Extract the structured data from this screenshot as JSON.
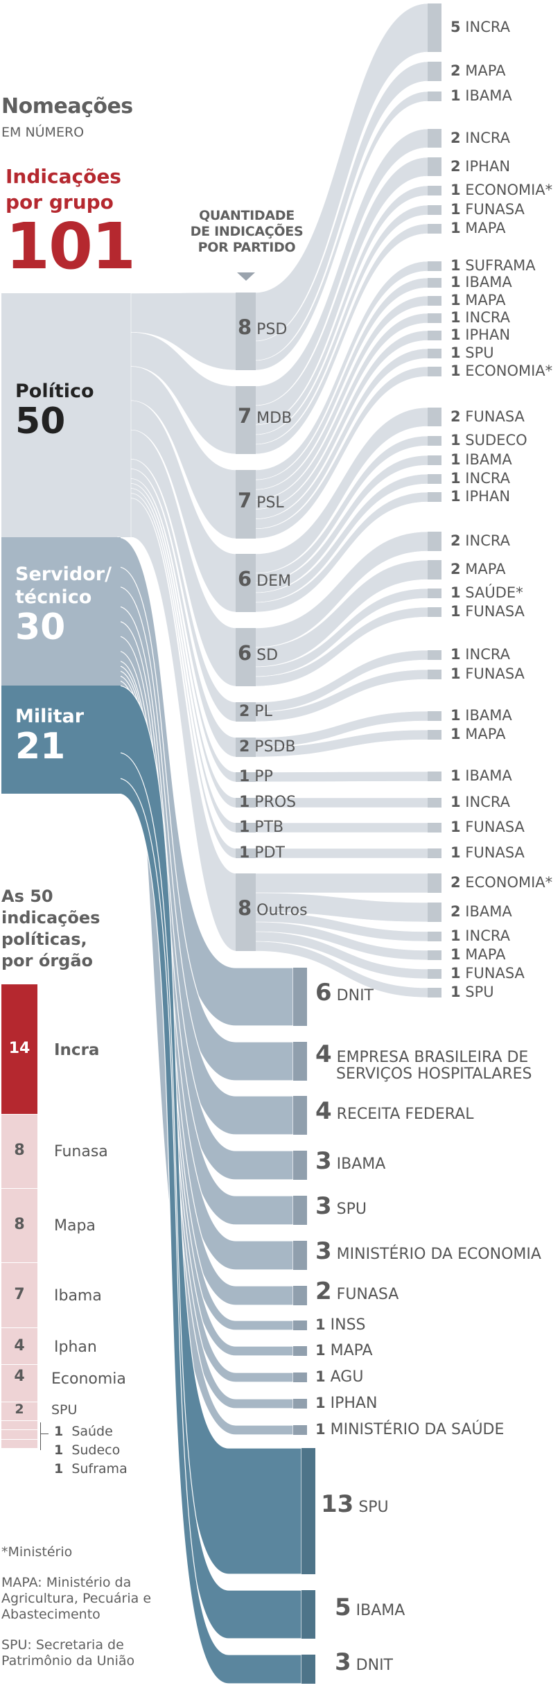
{
  "header": {
    "title": "Nomeações",
    "subtitle": "EM NÚMERO",
    "group_title_line1": "Indicações",
    "group_title_line2": "por grupo",
    "group_total": "101"
  },
  "party_header": {
    "line1": "QUANTIDADE",
    "line2": "DE INDICAÇÕES",
    "line3": "POR PARTIDO"
  },
  "colors": {
    "politico_flow": "#d9dee4",
    "politico_bar": "#c1c8cf",
    "servidor_flow": "#a7b7c5",
    "servidor_bar": "#909fad",
    "militar_flow": "#5b869e",
    "militar_bar": "#4e7489",
    "accent_red": "#b5282f",
    "light_red": "#eed3d5"
  },
  "chart_data": {
    "type": "sankey",
    "title": "Nomeações em número",
    "sources": [
      {
        "id": "politico",
        "label": "Político",
        "value": 50
      },
      {
        "id": "servidor",
        "label": "Servidor/ técnico",
        "value": 30
      },
      {
        "id": "militar",
        "label": "Militar",
        "value": 21
      }
    ],
    "parties": [
      {
        "name": "PSD",
        "value": 8,
        "orgaos": [
          {
            "value": 5,
            "name": "INCRA"
          },
          {
            "value": 2,
            "name": "MAPA"
          },
          {
            "value": 1,
            "name": "IBAMA"
          }
        ]
      },
      {
        "name": "MDB",
        "value": 7,
        "orgaos": [
          {
            "value": 2,
            "name": "INCRA"
          },
          {
            "value": 2,
            "name": "IPHAN"
          },
          {
            "value": 1,
            "name": "ECONOMIA*"
          },
          {
            "value": 1,
            "name": "FUNASA"
          },
          {
            "value": 1,
            "name": "MAPA"
          }
        ]
      },
      {
        "name": "PSL",
        "value": 7,
        "orgaos": [
          {
            "value": 1,
            "name": "SUFRAMA"
          },
          {
            "value": 1,
            "name": "IBAMA"
          },
          {
            "value": 1,
            "name": "MAPA"
          },
          {
            "value": 1,
            "name": "INCRA"
          },
          {
            "value": 1,
            "name": "IPHAN"
          },
          {
            "value": 1,
            "name": "SPU"
          },
          {
            "value": 1,
            "name": "ECONOMIA*"
          }
        ]
      },
      {
        "name": "DEM",
        "value": 6,
        "orgaos": [
          {
            "value": 2,
            "name": "FUNASA"
          },
          {
            "value": 1,
            "name": "SUDECO"
          },
          {
            "value": 1,
            "name": "IBAMA"
          },
          {
            "value": 1,
            "name": "INCRA"
          },
          {
            "value": 1,
            "name": "IPHAN"
          }
        ]
      },
      {
        "name": "SD",
        "value": 6,
        "orgaos": [
          {
            "value": 2,
            "name": "INCRA"
          },
          {
            "value": 2,
            "name": "MAPA"
          },
          {
            "value": 1,
            "name": "SAÚDE*"
          },
          {
            "value": 1,
            "name": "FUNASA"
          }
        ]
      },
      {
        "name": "PL",
        "value": 2,
        "orgaos": [
          {
            "value": 1,
            "name": "INCRA"
          },
          {
            "value": 1,
            "name": "FUNASA"
          }
        ]
      },
      {
        "name": "PSDB",
        "value": 2,
        "orgaos": [
          {
            "value": 1,
            "name": "IBAMA"
          },
          {
            "value": 1,
            "name": "MAPA"
          }
        ]
      },
      {
        "name": "PP",
        "value": 1,
        "orgaos": [
          {
            "value": 1,
            "name": "IBAMA"
          }
        ]
      },
      {
        "name": "PROS",
        "value": 1,
        "orgaos": [
          {
            "value": 1,
            "name": "INCRA"
          }
        ]
      },
      {
        "name": "PTB",
        "value": 1,
        "orgaos": [
          {
            "value": 1,
            "name": "FUNASA"
          }
        ]
      },
      {
        "name": "PDT",
        "value": 1,
        "orgaos": [
          {
            "value": 1,
            "name": "FUNASA"
          }
        ]
      },
      {
        "name": "Outros",
        "value": 8,
        "orgaos": [
          {
            "value": 2,
            "name": "ECONOMIA*"
          },
          {
            "value": 2,
            "name": "IBAMA"
          },
          {
            "value": 1,
            "name": "INCRA"
          },
          {
            "value": 1,
            "name": "MAPA"
          },
          {
            "value": 1,
            "name": "FUNASA"
          },
          {
            "value": 1,
            "name": "SPU"
          }
        ]
      }
    ],
    "servidor_targets": [
      {
        "value": 6,
        "name": "DNIT"
      },
      {
        "value": 4,
        "name": "EMPRESA BRASILEIRA DE",
        "name2": "SERVIÇOS HOSPITALARES"
      },
      {
        "value": 4,
        "name": "RECEITA FEDERAL"
      },
      {
        "value": 3,
        "name": "IBAMA"
      },
      {
        "value": 3,
        "name": "SPU"
      },
      {
        "value": 3,
        "name": "MINISTÉRIO DA ECONOMIA"
      },
      {
        "value": 2,
        "name": "FUNASA"
      },
      {
        "value": 1,
        "name": "INSS"
      },
      {
        "value": 1,
        "name": "MAPA"
      },
      {
        "value": 1,
        "name": "AGU"
      },
      {
        "value": 1,
        "name": "IPHAN"
      },
      {
        "value": 1,
        "name": "MINISTÉRIO DA SAÚDE"
      }
    ],
    "militar_targets": [
      {
        "value": 13,
        "name": "SPU"
      },
      {
        "value": 5,
        "name": "IBAMA"
      },
      {
        "value": 3,
        "name": "DNIT"
      }
    ],
    "politicas_por_orgao": {
      "title_lines": [
        "As 50",
        "indicações",
        "políticas,",
        "por órgão"
      ],
      "items": [
        {
          "value": 14,
          "name": "Incra"
        },
        {
          "value": 8,
          "name": "Funasa"
        },
        {
          "value": 8,
          "name": "Mapa"
        },
        {
          "value": 7,
          "name": "Ibama"
        },
        {
          "value": 4,
          "name": "Iphan"
        },
        {
          "value": 4,
          "name": "Economia"
        },
        {
          "value": 2,
          "name": "SPU"
        },
        {
          "value": 1,
          "name": "Saúde"
        },
        {
          "value": 1,
          "name": "Sudeco"
        },
        {
          "value": 1,
          "name": "Suframa"
        }
      ]
    }
  },
  "footnotes": {
    "asterisk": "*Ministério",
    "mapa": "MAPA: Ministério da Agricultura, Pecuária e Abastecimento",
    "mapa_lines": [
      "MAPA: Ministério da",
      "Agricultura, Pecuária e",
      "Abastecimento"
    ],
    "spu_lines": [
      "SPU: Secretaria de",
      "Patrimônio da União"
    ]
  }
}
